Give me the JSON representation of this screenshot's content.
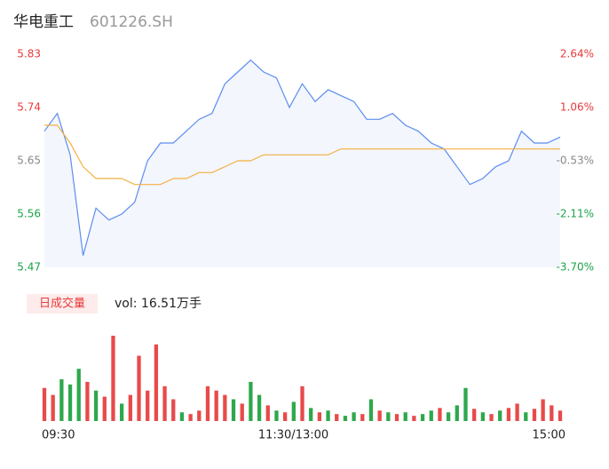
{
  "chart_data": [
    {
      "type": "line",
      "title": "华电重工",
      "subtitle": "601226.SH",
      "x": [
        0,
        6,
        12,
        18,
        24,
        30,
        36,
        42,
        48,
        54,
        60,
        66,
        72,
        78,
        84,
        90,
        96,
        102,
        108,
        114,
        120,
        126,
        132,
        138,
        144,
        150,
        156,
        162,
        168,
        174,
        180,
        186,
        192,
        198,
        204,
        210,
        216,
        222,
        228,
        234,
        240
      ],
      "xlim": [
        0,
        240
      ],
      "xticks": [
        {
          "value": 0,
          "label": "09:30"
        },
        {
          "value": 120,
          "label": "11:30/13:00"
        },
        {
          "value": 240,
          "label": "15:00"
        }
      ],
      "series": [
        {
          "color": "#5b8def",
          "values": [
            5.7,
            5.73,
            5.66,
            5.49,
            5.57,
            5.55,
            5.56,
            5.58,
            5.65,
            5.68,
            5.68,
            5.7,
            5.72,
            5.73,
            5.78,
            5.8,
            5.82,
            5.8,
            5.79,
            5.74,
            5.78,
            5.75,
            5.77,
            5.76,
            5.75,
            5.72,
            5.72,
            5.73,
            5.71,
            5.7,
            5.68,
            5.67,
            5.64,
            5.61,
            5.62,
            5.64,
            5.65,
            5.7,
            5.68,
            5.68,
            5.69
          ]
        },
        {
          "color": "#f5b042",
          "values": [
            5.71,
            5.71,
            5.68,
            5.64,
            5.62,
            5.62,
            5.62,
            5.61,
            5.61,
            5.61,
            5.62,
            5.62,
            5.63,
            5.63,
            5.64,
            5.65,
            5.65,
            5.66,
            5.66,
            5.66,
            5.66,
            5.66,
            5.66,
            5.67,
            5.67,
            5.67,
            5.67,
            5.67,
            5.67,
            5.67,
            5.67,
            5.67,
            5.67,
            5.67,
            5.67,
            5.67,
            5.67,
            5.67,
            5.67,
            5.67,
            5.67
          ]
        }
      ],
      "ylim": [
        5.47,
        5.83
      ],
      "yticks": [
        5.83,
        5.74,
        5.65,
        5.56,
        5.47
      ],
      "ytick_colors": [
        "#e83a3a",
        "#e83a3a",
        "#888888",
        "#1aa34a",
        "#1aa34a"
      ],
      "y2lim": [
        -3.7,
        2.64
      ],
      "y2ticks": [
        {
          "value": 2.64,
          "label": "2.64%"
        },
        {
          "value": 1.06,
          "label": "1.06%"
        },
        {
          "value": -0.53,
          "label": "-0.53%"
        },
        {
          "value": -2.11,
          "label": "-2.11%"
        },
        {
          "value": -3.7,
          "label": "-3.70%"
        }
      ],
      "area_color": "#f3f6fd"
    },
    {
      "type": "bar",
      "title": "日成交量",
      "annotation": "vol: 16.51万手",
      "x": [
        0,
        4,
        8,
        12,
        16,
        20,
        24,
        28,
        32,
        36,
        40,
        44,
        48,
        52,
        56,
        60,
        64,
        68,
        72,
        76,
        80,
        84,
        88,
        92,
        96,
        100,
        104,
        108,
        112,
        116,
        120,
        124,
        128,
        132,
        136,
        140,
        144,
        148,
        152,
        156,
        160,
        164,
        168,
        172,
        176,
        180,
        184,
        188,
        192,
        196,
        200,
        204,
        208,
        212,
        216,
        220,
        224,
        228,
        232,
        236,
        240
      ],
      "xlim": [
        0,
        240
      ],
      "ylim": [
        0,
        100
      ],
      "values": [
        38,
        30,
        48,
        42,
        60,
        45,
        35,
        28,
        98,
        20,
        30,
        75,
        35,
        88,
        40,
        25,
        10,
        8,
        12,
        40,
        35,
        30,
        25,
        20,
        45,
        30,
        18,
        12,
        10,
        22,
        40,
        15,
        10,
        12,
        8,
        6,
        10,
        8,
        25,
        12,
        10,
        8,
        10,
        6,
        8,
        12,
        15,
        10,
        18,
        38,
        14,
        10,
        8,
        12,
        15,
        20,
        10,
        14,
        25,
        18,
        12
      ],
      "colors": [
        "#e84a4a",
        "#e84a4a",
        "#2ea84c",
        "#2ea84c",
        "#2ea84c",
        "#e84a4a",
        "#2ea84c",
        "#e84a4a",
        "#e84a4a",
        "#2ea84c",
        "#e84a4a",
        "#e84a4a",
        "#e84a4a",
        "#e84a4a",
        "#e84a4a",
        "#e84a4a",
        "#2ea84c",
        "#e84a4a",
        "#e84a4a",
        "#e84a4a",
        "#e84a4a",
        "#e84a4a",
        "#2ea84c",
        "#e84a4a",
        "#2ea84c",
        "#2ea84c",
        "#e84a4a",
        "#2ea84c",
        "#e84a4a",
        "#2ea84c",
        "#e84a4a",
        "#2ea84c",
        "#e84a4a",
        "#2ea84c",
        "#e84a4a",
        "#2ea84c",
        "#2ea84c",
        "#e84a4a",
        "#2ea84c",
        "#e84a4a",
        "#2ea84c",
        "#e84a4a",
        "#2ea84c",
        "#e84a4a",
        "#2ea84c",
        "#2ea84c",
        "#e84a4a",
        "#2ea84c",
        "#2ea84c",
        "#2ea84c",
        "#e84a4a",
        "#2ea84c",
        "#e84a4a",
        "#2ea84c",
        "#e84a4a",
        "#e84a4a",
        "#2ea84c",
        "#e84a4a",
        "#e84a4a",
        "#e84a4a",
        "#e84a4a"
      ]
    }
  ]
}
